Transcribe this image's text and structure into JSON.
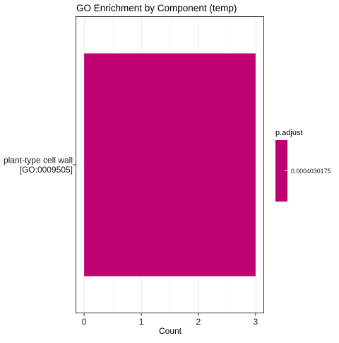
{
  "chart_data": {
    "type": "bar",
    "orientation": "horizontal",
    "title": "GO Enrichment by Component (temp)",
    "xlabel": "Count",
    "ylabel": "",
    "categories": [
      [
        "plant-type cell wall",
        "[GO:0009505]"
      ]
    ],
    "values": [
      3
    ],
    "xlim": [
      -0.15,
      3.15
    ],
    "x_ticks": [
      0,
      1,
      2,
      3
    ],
    "grid": true,
    "bar_color": "#BF0073",
    "legend": {
      "title": "p.adjust",
      "label": "0.0004030175",
      "color": "#BF0073",
      "placement": "right"
    }
  },
  "colors": {
    "panel_border": "#333333",
    "grid_major": "#ebebeb",
    "grid_minor": "#f5f5f5",
    "text": "#000000",
    "axis_text": "#1a1a1a"
  }
}
